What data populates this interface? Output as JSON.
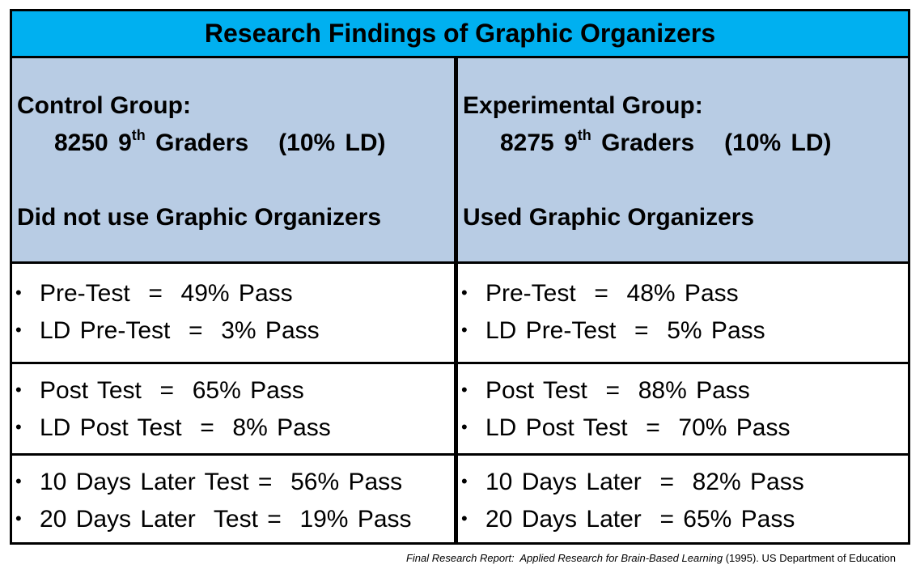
{
  "title": "Research Findings of  Graphic Organizers",
  "control": {
    "heading": "Control Group:",
    "count": "8250 9",
    "count_sup": "th",
    "count_rest": " Graders   (10% LD)",
    "desc": "Did not use Graphic Organizers",
    "rows": [
      [
        "Pre-Test  =  49% Pass",
        "LD Pre-Test  =  3% Pass"
      ],
      [
        "Post Test  =  65% Pass",
        "LD Post Test  =  8% Pass"
      ],
      [
        "10 Days Later Test =  56% Pass",
        "20 Days Later  Test =  19% Pass"
      ]
    ]
  },
  "experimental": {
    "heading": "Experimental Group:",
    "count": "8275 9",
    "count_sup": "th",
    "count_rest": " Graders   (10% LD)",
    "desc": "Used Graphic Organizers",
    "rows": [
      [
        "Pre-Test  =  48% Pass",
        "LD Pre-Test  =  5% Pass"
      ],
      [
        "Post Test  =  88% Pass",
        "LD Post Test  =  70% Pass"
      ],
      [
        "10 Days Later  =  82% Pass",
        "20 Days Later  = 65% Pass"
      ]
    ]
  },
  "bullet": "•",
  "citation": {
    "italic": "Final Research Report:  Applied Research for Brain-Based Learning",
    "rest": " (1995). US Department of Education"
  },
  "colors": {
    "title_bg": "#00b0f0",
    "header_bg": "#b8cce4",
    "border": "#000000"
  }
}
